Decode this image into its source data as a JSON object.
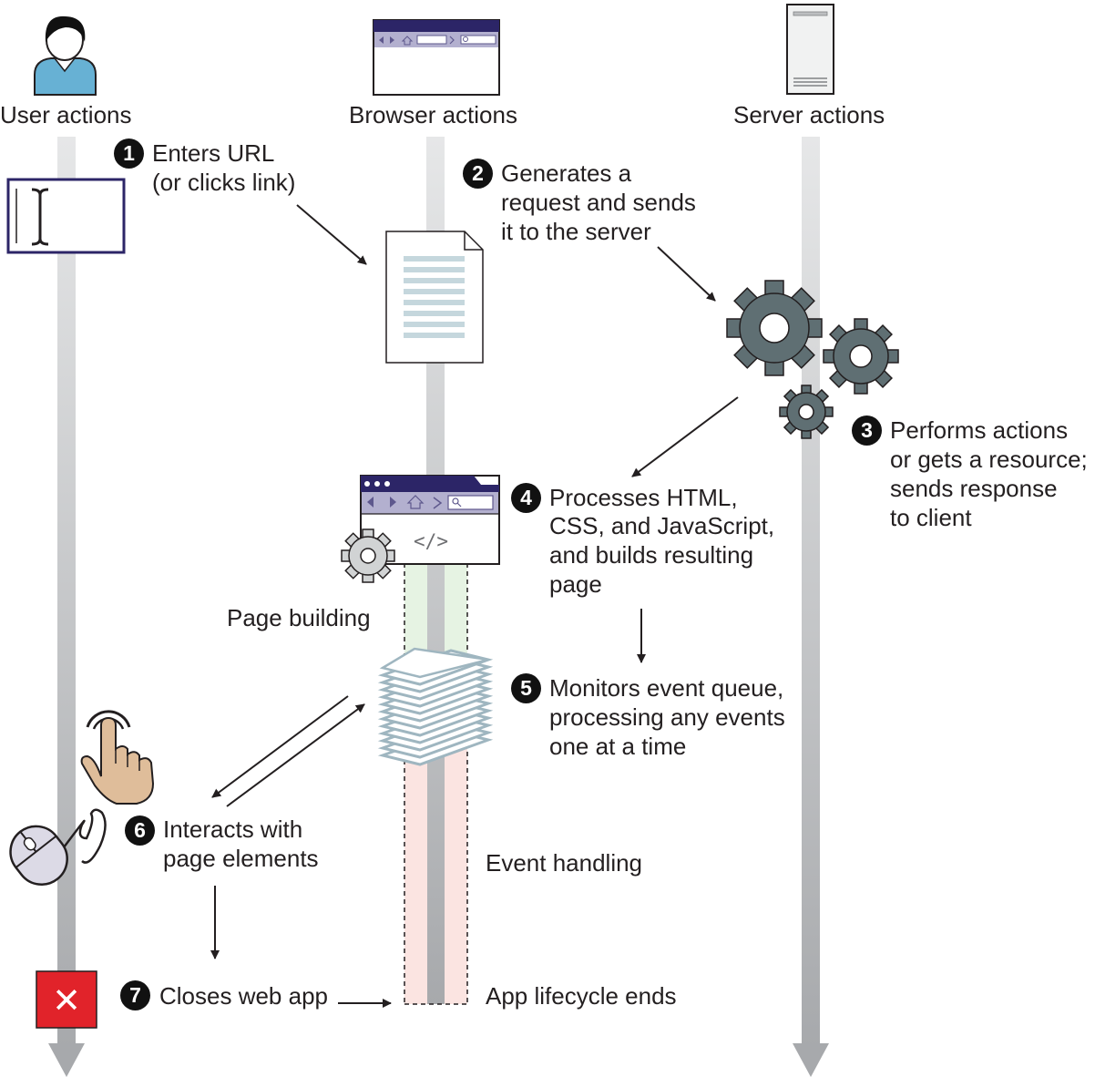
{
  "columns": {
    "user": "User actions",
    "browser": "Browser actions",
    "server": "Server actions"
  },
  "steps": [
    {
      "number": "1",
      "lines": [
        "Enters URL",
        "(or clicks link)"
      ]
    },
    {
      "number": "2",
      "lines": [
        "Generates a",
        "request and sends",
        "it to the server"
      ]
    },
    {
      "number": "3",
      "lines": [
        "Performs actions",
        "or gets a resource;",
        "sends response",
        "to client"
      ]
    },
    {
      "number": "4",
      "lines": [
        "Processes HTML,",
        "CSS, and JavaScript,",
        "and builds resulting",
        "page"
      ]
    },
    {
      "number": "5",
      "lines": [
        "Monitors event queue,",
        "processing any events",
        "one at a time"
      ]
    },
    {
      "number": "6",
      "lines": [
        "Interacts with",
        "page elements"
      ]
    },
    {
      "number": "7",
      "lines": [
        "Closes web app"
      ]
    }
  ],
  "phases": {
    "page_building": "Page building",
    "event_handling": "Event handling",
    "lifecycle_end": "App lifecycle ends"
  },
  "code_glyph": "</>",
  "close_glyph": "✕",
  "icons": [
    "user-avatar-icon",
    "browser-window-icon",
    "server-tower-icon",
    "text-cursor-input-icon",
    "document-icon",
    "gears-icon",
    "browser-code-window-icon",
    "small-gear-icon",
    "event-queue-stack-icon",
    "pointing-hand-icon",
    "mouse-icon",
    "close-app-icon"
  ],
  "colors": {
    "timeline": "#c8c9cb",
    "accent_purple": "#2c2567",
    "user_blue": "#67b1d4",
    "gear_gray": "#5f6f73",
    "queue_blue": "#9fb6c0",
    "page_building_fill": "#e6f3e3",
    "event_handling_fill": "#fbe4e1",
    "close_red": "#e1232a",
    "hand_skin": "#dfbd9a"
  }
}
